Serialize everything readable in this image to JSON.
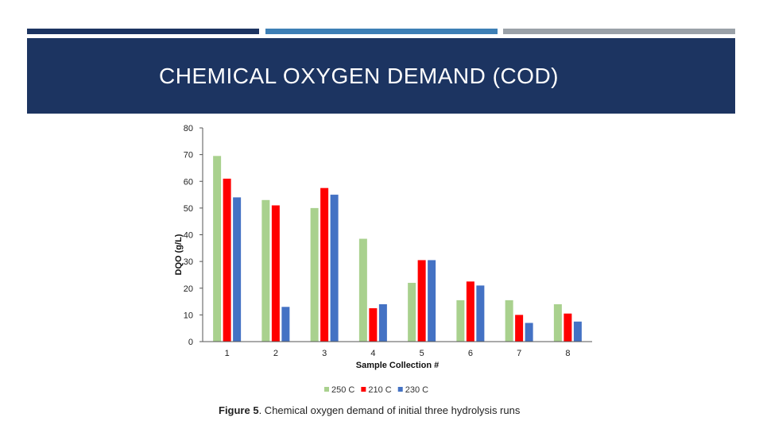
{
  "colors": {
    "stripes": [
      "#1c3461",
      "#3d7fb5",
      "#9aa1a8"
    ],
    "title_band": "#1c3461",
    "title_text": "#ffffff",
    "axis": "#555555"
  },
  "slide": {
    "title": "CHEMICAL OXYGEN DEMAND (COD)"
  },
  "caption": {
    "label": "Figure 5",
    "text": ". Chemical oxygen demand of initial three hydrolysis runs"
  },
  "chart_data": {
    "type": "bar",
    "xlabel": "Sample Collection #",
    "ylabel": "DQO (g/L)",
    "ylim": [
      0,
      80
    ],
    "yticks": [
      0,
      10,
      20,
      30,
      40,
      50,
      60,
      70,
      80
    ],
    "grid": false,
    "legend_position": "bottom",
    "categories": [
      "1",
      "2",
      "3",
      "4",
      "5",
      "6",
      "7",
      "8"
    ],
    "series": [
      {
        "name": "250 C",
        "color": "#a9d18e",
        "values": [
          69.5,
          53,
          50,
          38.5,
          22,
          15.5,
          15.5,
          14
        ]
      },
      {
        "name": "210 C",
        "color": "#ff0000",
        "values": [
          61,
          51,
          57.5,
          12.5,
          30.5,
          22.5,
          10,
          10.5
        ]
      },
      {
        "name": "230 C",
        "color": "#4472c4",
        "values": [
          54,
          13,
          55,
          14,
          30.5,
          21,
          7,
          7.5
        ]
      }
    ]
  }
}
